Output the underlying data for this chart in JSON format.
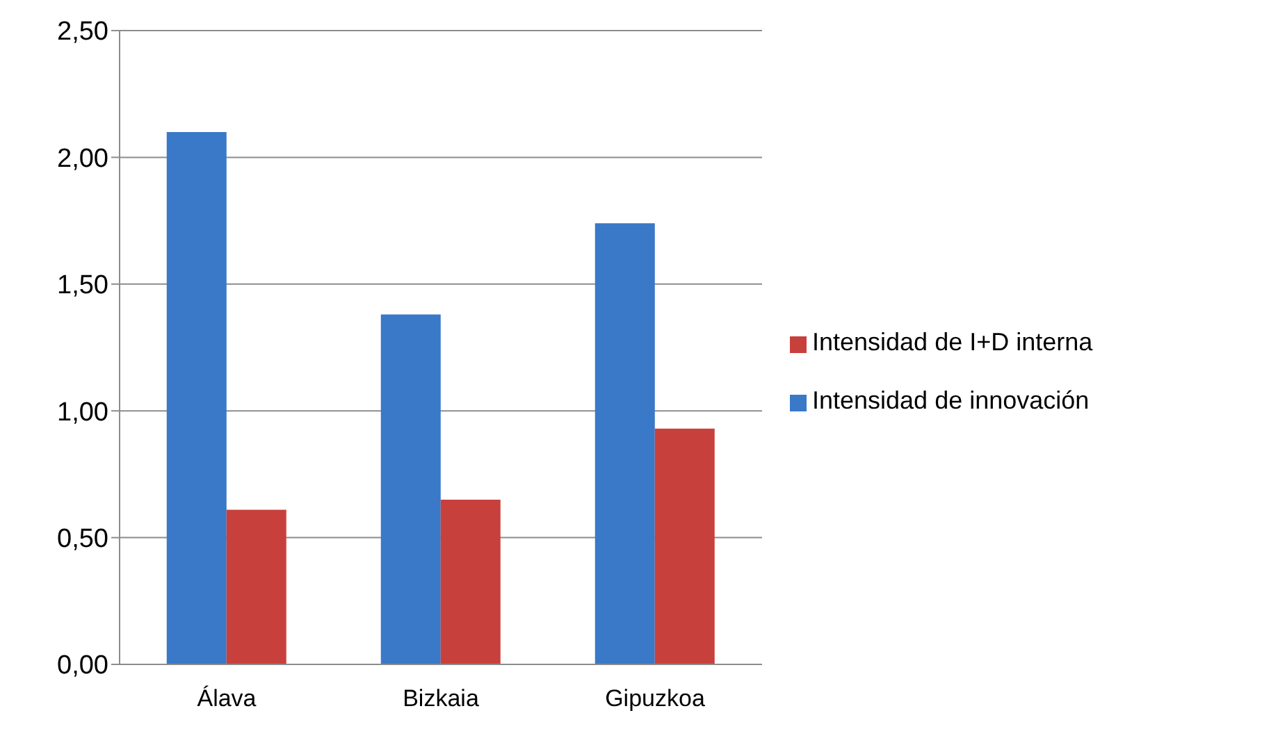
{
  "chart_data": {
    "type": "bar",
    "categories": [
      "Álava",
      "Bizkaia",
      "Gipuzkoa"
    ],
    "series": [
      {
        "name": "Intensidad de innovación",
        "color": "#3a78c8",
        "values": [
          2.1,
          1.38,
          1.74
        ]
      },
      {
        "name": "Intensidad de I+D interna",
        "color": "#c8403c",
        "values": [
          0.61,
          0.65,
          0.93
        ]
      }
    ],
    "ylim": [
      0,
      2.5
    ],
    "yticks": [
      {
        "value": 0,
        "label": "0,00"
      },
      {
        "value": 0.5,
        "label": "0,50"
      },
      {
        "value": 1,
        "label": "1,00"
      },
      {
        "value": 1.5,
        "label": "1,50"
      },
      {
        "value": 2,
        "label": "2,00"
      },
      {
        "value": 2.5,
        "label": "2,50"
      }
    ],
    "grid": "y",
    "legend": "right"
  }
}
